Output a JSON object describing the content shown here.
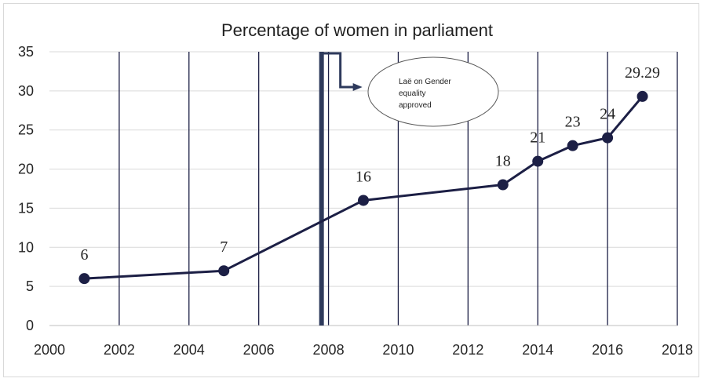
{
  "chart_data": {
    "type": "line",
    "title": "Percentage of women in parliament",
    "xlabel": "",
    "ylabel": "",
    "xlim": [
      2000,
      2018
    ],
    "ylim": [
      0,
      35
    ],
    "x_ticks": [
      2000,
      2002,
      2004,
      2006,
      2008,
      2010,
      2012,
      2014,
      2016,
      2018
    ],
    "y_ticks": [
      0,
      5,
      10,
      15,
      20,
      25,
      30,
      35
    ],
    "grid": {
      "vertical": true,
      "horizontal": true
    },
    "series": [
      {
        "x": [
          2001,
          2005,
          2009,
          2013,
          2014,
          2015,
          2016,
          2017
        ],
        "y": [
          6,
          7,
          16,
          18,
          21,
          23,
          24,
          29.29
        ],
        "labels": [
          "6",
          "7",
          "16",
          "18",
          "21",
          "23",
          "24",
          "29.29"
        ],
        "color": "#1c1f45"
      }
    ],
    "annotation": {
      "x": 2007.8,
      "text_lines": [
        "Laë on Gender",
        "equality",
        "approved"
      ]
    },
    "colors": {
      "series": "#1c1f45",
      "vertical_grid": "#1c1f45",
      "horizontal_grid": "#d9d9d9",
      "annotation_bar": "#2e3a5c"
    }
  }
}
